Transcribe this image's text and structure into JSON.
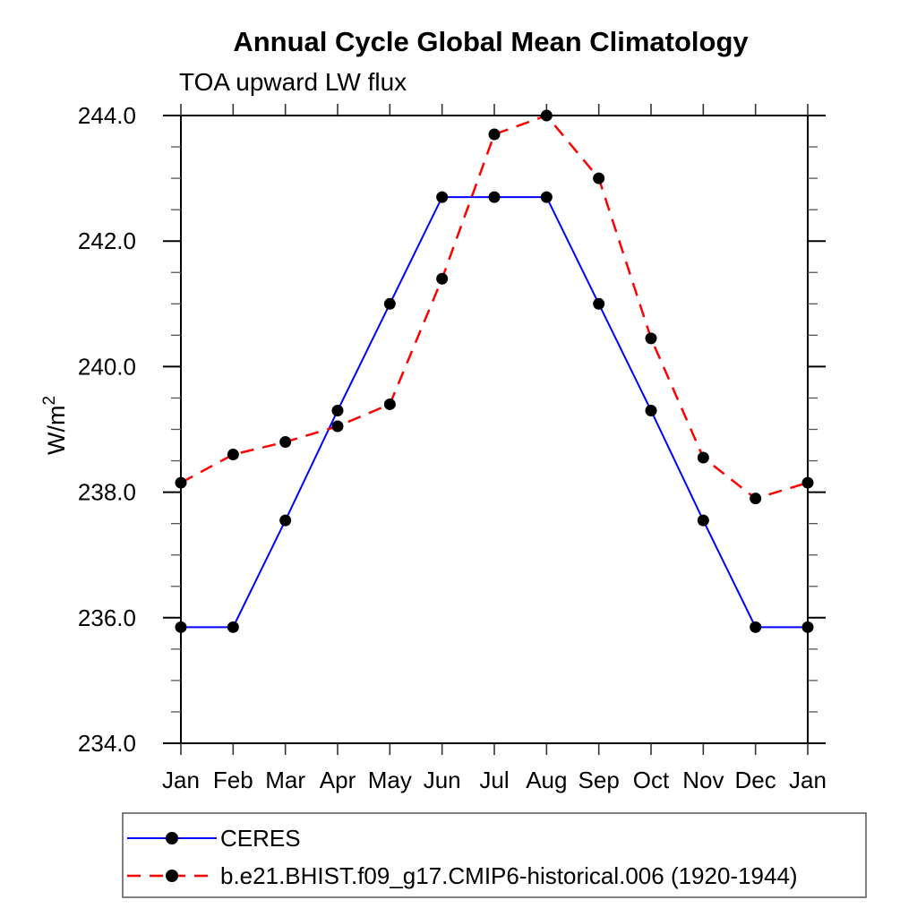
{
  "title": "Annual Cycle Global Mean Climatology",
  "subtitle": "TOA upward LW flux",
  "ylabel": {
    "base": "W/m",
    "sup": "2"
  },
  "chart_data": {
    "type": "line",
    "categories": [
      "Jan",
      "Feb",
      "Mar",
      "Apr",
      "May",
      "Jun",
      "Jul",
      "Aug",
      "Sep",
      "Oct",
      "Nov",
      "Dec",
      "Jan"
    ],
    "series": [
      {
        "name": "CERES",
        "color": "#0000ff",
        "line_style": "solid",
        "line_width": 2,
        "marker": "circle",
        "marker_color": "#000000",
        "values": [
          235.85,
          235.85,
          237.55,
          239.3,
          241.0,
          242.7,
          242.7,
          242.7,
          241.0,
          239.3,
          237.55,
          235.85,
          235.85
        ]
      },
      {
        "name": "b.e21.BHIST.f09_g17.CMIP6-historical.006 (1920-1944)",
        "color": "#ff0000",
        "line_style": "dashed",
        "line_width": 2.5,
        "marker": "circle",
        "marker_color": "#000000",
        "values": [
          238.15,
          238.6,
          238.8,
          239.05,
          239.4,
          241.4,
          243.7,
          244.0,
          243.0,
          240.45,
          238.55,
          237.9,
          238.15
        ]
      }
    ],
    "ylim": [
      234.0,
      244.0
    ],
    "ytick_major": 2.0,
    "ytick_minor": 0.5,
    "ytick_labels": [
      "234.0",
      "236.0",
      "238.0",
      "240.0",
      "242.0",
      "244.0"
    ],
    "ylabel": "W/m²",
    "xlabel": "",
    "grid": false,
    "legend_position": "bottom-left",
    "legend_entries": [
      "CERES",
      "b.e21.BHIST.f09_g17.CMIP6-historical.006 (1920-1944)"
    ]
  }
}
